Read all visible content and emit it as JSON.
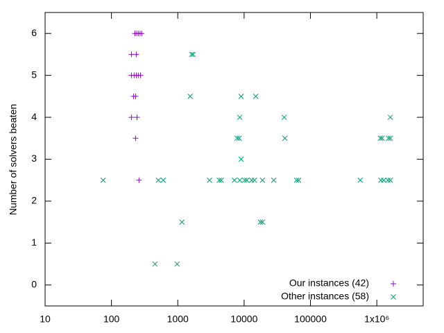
{
  "chart_data": {
    "type": "scatter",
    "y_label": "Number of solvers beaten",
    "xscale": "log",
    "xlim": [
      10,
      5000000
    ],
    "ylim": [
      -0.5,
      6.5
    ],
    "xticks": [
      10,
      100,
      1000,
      10000,
      100000,
      {
        "value": 1000000,
        "label": "1x10⁶"
      }
    ],
    "yticks": [
      0,
      1,
      2,
      3,
      4,
      5,
      6
    ],
    "legend": "bottom-right",
    "series": [
      {
        "name": "Our instances (42)",
        "color": "#9400d3",
        "marker": "+",
        "x": [
          226,
          240,
          254,
          270,
          285,
          200,
          237,
          200,
          220,
          237,
          254,
          274,
          216,
          231,
          200,
          243,
          231,
          260
        ],
        "values": [
          6,
          6,
          6,
          6,
          6,
          5.5,
          5.5,
          5,
          5,
          5,
          5,
          5,
          4.5,
          4.5,
          4,
          4,
          3.5,
          2.5
        ]
      },
      {
        "name": "Other instances (58)",
        "color": "#009e73",
        "marker": "x",
        "x": [
          75,
          453,
          977,
          1155,
          511,
          604,
          1540,
          1620,
          1700,
          3015,
          4217,
          4520,
          7150,
          7850,
          8420,
          8600,
          9000,
          9000,
          8600,
          10200,
          11000,
          13000,
          14300,
          15000,
          17600,
          18900,
          18900,
          28000,
          40200,
          41200,
          61800,
          66400,
          562000,
          1130000,
          1200000,
          1150000,
          1270000,
          1500000,
          1600000,
          1600000,
          1470000,
          1600000
        ],
        "values": [
          2.5,
          0.5,
          0.5,
          1.5,
          2.5,
          2.5,
          4.5,
          5.5,
          5.5,
          2.5,
          2.5,
          2.5,
          2.5,
          3.5,
          3.5,
          4,
          4.5,
          3,
          2.5,
          2.5,
          2.5,
          2.5,
          2.5,
          4.5,
          1.5,
          1.5,
          2.5,
          2.5,
          4,
          3.5,
          2.5,
          2.5,
          2.5,
          3.5,
          3.5,
          2.5,
          2.5,
          3.5,
          3.5,
          4,
          2.5,
          2.5
        ]
      }
    ]
  }
}
